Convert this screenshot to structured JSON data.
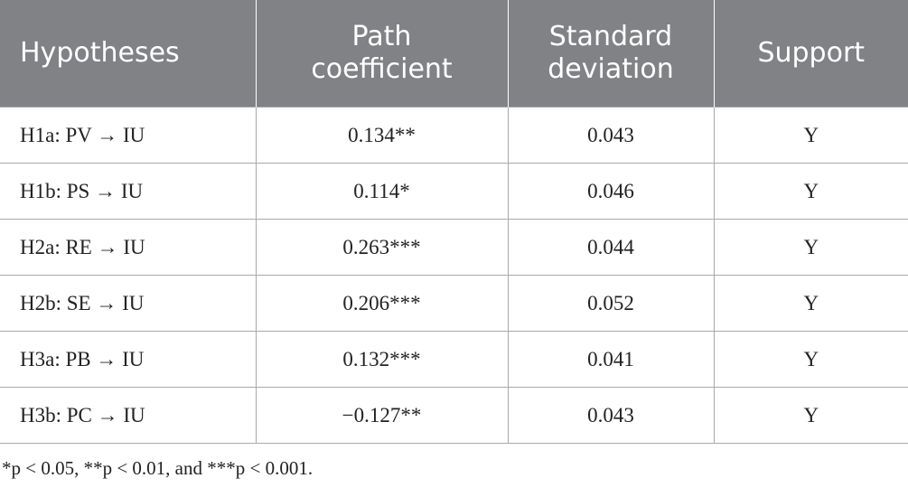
{
  "table": {
    "header": [
      "Hypotheses",
      "Path coefficient",
      "Standard deviation",
      "Support"
    ],
    "rows": [
      [
        "H1a: PV → IU",
        "0.134**",
        "0.043",
        "Y"
      ],
      [
        "H1b: PS → IU",
        "0.114*",
        "0.046",
        "Y"
      ],
      [
        "H2a: RE → IU",
        "0.263***",
        "0.044",
        "Y"
      ],
      [
        "H2b: SE → IU",
        "0.206***",
        "0.052",
        "Y"
      ],
      [
        "H3a: PB → IU",
        "0.132***",
        "0.041",
        "Y"
      ],
      [
        "H3b: PC → IU",
        "−0.127**",
        "0.043",
        "Y"
      ]
    ]
  },
  "footnote": "*p < 0.05, **p < 0.01, and ***p < 0.001."
}
